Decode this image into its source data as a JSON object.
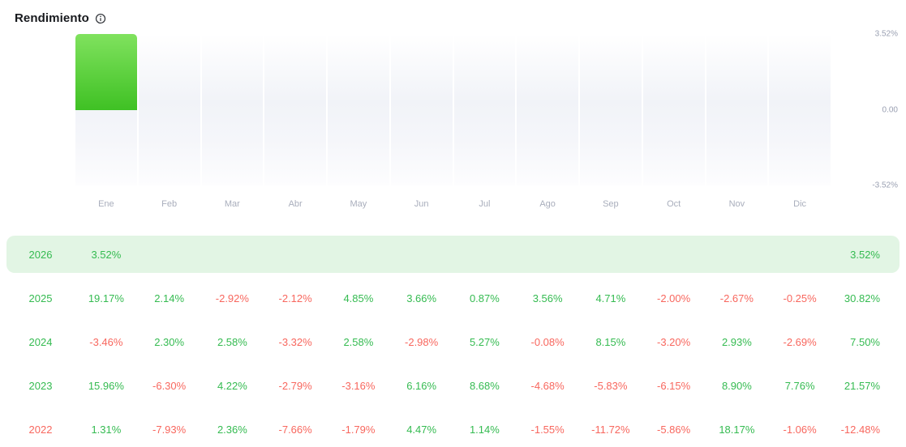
{
  "header": {
    "title": "Rendimiento",
    "info_icon": "info-icon"
  },
  "colors": {
    "positive": "#35bb51",
    "negative": "#f8675e",
    "row_highlight": "#e2f5e4",
    "bar_gradient_top": "#80e25e",
    "bar_gradient_bottom": "#3fc124",
    "axis_label": "#9aa0b2",
    "month_label": "#a9aebc"
  },
  "chart_data": {
    "type": "bar",
    "title": "Rendimiento",
    "xlabel": "",
    "ylabel": "",
    "categories": [
      "Ene",
      "Feb",
      "Mar",
      "Abr",
      "May",
      "Jun",
      "Jul",
      "Ago",
      "Sep",
      "Oct",
      "Nov",
      "Dic"
    ],
    "values": [
      3.52,
      null,
      null,
      null,
      null,
      null,
      null,
      null,
      null,
      null,
      null,
      null
    ],
    "ylim": [
      -3.52,
      3.52
    ],
    "yticks": [
      {
        "label": "3.52%",
        "value": 3.52
      },
      {
        "label": "0.00",
        "value": 0
      },
      {
        "label": "-3.52%",
        "value": -3.52
      }
    ],
    "legend": "none",
    "grid": "off"
  },
  "table": {
    "months": [
      "Ene",
      "Feb",
      "Mar",
      "Abr",
      "May",
      "Jun",
      "Jul",
      "Ago",
      "Sep",
      "Oct",
      "Nov",
      "Dic"
    ],
    "rows": [
      {
        "year": "2026",
        "year_sign": "positive",
        "highlighted": true,
        "values": [
          "3.52%",
          "",
          "",
          "",
          "",
          "",
          "",
          "",
          "",
          "",
          "",
          ""
        ],
        "total": "3.52%"
      },
      {
        "year": "2025",
        "year_sign": "positive",
        "highlighted": false,
        "values": [
          "19.17%",
          "2.14%",
          "-2.92%",
          "-2.12%",
          "4.85%",
          "3.66%",
          "0.87%",
          "3.56%",
          "4.71%",
          "-2.00%",
          "-2.67%",
          "-0.25%"
        ],
        "total": "30.82%"
      },
      {
        "year": "2024",
        "year_sign": "positive",
        "highlighted": false,
        "values": [
          "-3.46%",
          "2.30%",
          "2.58%",
          "-3.32%",
          "2.58%",
          "-2.98%",
          "5.27%",
          "-0.08%",
          "8.15%",
          "-3.20%",
          "2.93%",
          "-2.69%"
        ],
        "total": "7.50%"
      },
      {
        "year": "2023",
        "year_sign": "positive",
        "highlighted": false,
        "values": [
          "15.96%",
          "-6.30%",
          "4.22%",
          "-2.79%",
          "-3.16%",
          "6.16%",
          "8.68%",
          "-4.68%",
          "-5.83%",
          "-6.15%",
          "8.90%",
          "7.76%"
        ],
        "total": "21.57%"
      },
      {
        "year": "2022",
        "year_sign": "negative",
        "highlighted": false,
        "values": [
          "1.31%",
          "-7.93%",
          "2.36%",
          "-7.66%",
          "-1.79%",
          "4.47%",
          "1.14%",
          "-1.55%",
          "-11.72%",
          "-5.86%",
          "18.17%",
          "-1.06%"
        ],
        "total": "-12.48%"
      }
    ]
  }
}
